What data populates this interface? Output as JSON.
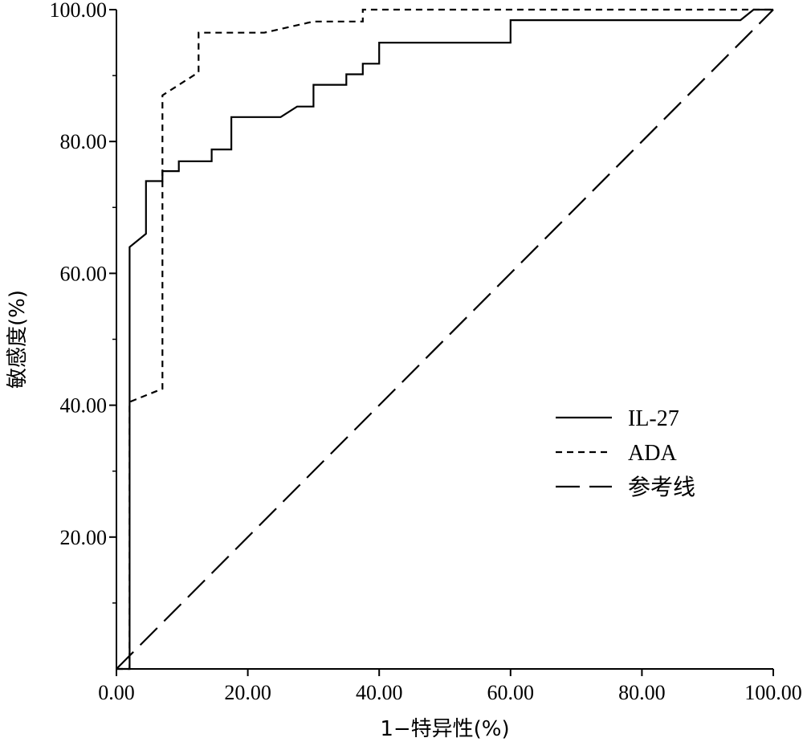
{
  "chart_data": {
    "type": "line",
    "title": "",
    "xlabel": "1−特异性(%)",
    "ylabel": "敏感度(%)",
    "xlim": [
      0,
      100
    ],
    "ylim": [
      0,
      100
    ],
    "x_ticks": [
      "0.00",
      "20.00",
      "40.00",
      "60.00",
      "80.00",
      "100.00"
    ],
    "y_ticks": [
      "20.00",
      "40.00",
      "60.00",
      "80.00",
      "100.00"
    ],
    "grid": false,
    "legend_position": "right-middle",
    "series": [
      {
        "name": "IL-27",
        "style": "solid",
        "points": [
          [
            0,
            0
          ],
          [
            2,
            0
          ],
          [
            2,
            64
          ],
          [
            4.5,
            66
          ],
          [
            4.5,
            74
          ],
          [
            7,
            74
          ],
          [
            7,
            75.5
          ],
          [
            9.5,
            75.5
          ],
          [
            9.5,
            77
          ],
          [
            14.5,
            77
          ],
          [
            14.5,
            78.8
          ],
          [
            17.5,
            78.8
          ],
          [
            17.5,
            83.7
          ],
          [
            25,
            83.7
          ],
          [
            27.5,
            85.3
          ],
          [
            30,
            85.3
          ],
          [
            30,
            88.6
          ],
          [
            35,
            88.6
          ],
          [
            35,
            90.2
          ],
          [
            37.5,
            90.2
          ],
          [
            37.5,
            91.8
          ],
          [
            40,
            91.8
          ],
          [
            40,
            95
          ],
          [
            60,
            95
          ],
          [
            60,
            98.4
          ],
          [
            95,
            98.4
          ],
          [
            97,
            100
          ],
          [
            100,
            100
          ]
        ]
      },
      {
        "name": "ADA",
        "style": "dashed",
        "points": [
          [
            0,
            0
          ],
          [
            2,
            0
          ],
          [
            2,
            40.5
          ],
          [
            7,
            42.5
          ],
          [
            7,
            87
          ],
          [
            12.5,
            90.5
          ],
          [
            12.5,
            96.5
          ],
          [
            22.5,
            96.5
          ],
          [
            30,
            98.2
          ],
          [
            37.5,
            98.2
          ],
          [
            37.5,
            100
          ],
          [
            100,
            100
          ]
        ]
      },
      {
        "name": "参考线",
        "style": "long-dash",
        "points": [
          [
            0,
            0
          ],
          [
            100,
            100
          ]
        ]
      }
    ]
  }
}
